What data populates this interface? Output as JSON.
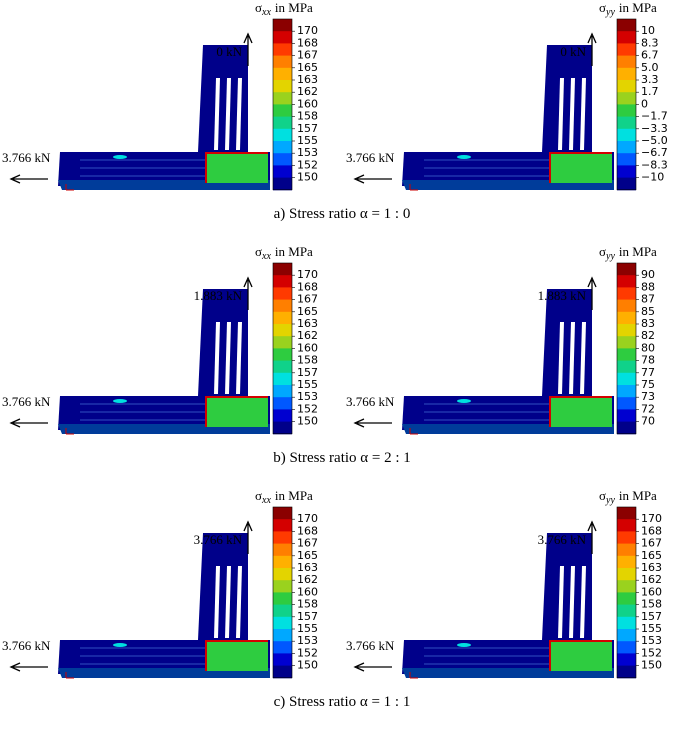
{
  "rows": [
    {
      "caption": "a) Stress ratio α = 1 : 0",
      "panels": [
        {
          "title": {
            "symbol": "σ",
            "sub": "xx",
            "unit": "in MPa"
          },
          "ticks": [
            "170",
            "168",
            "167",
            "165",
            "163",
            "162",
            "160",
            "158",
            "157",
            "155",
            "153",
            "152",
            "150"
          ],
          "force_top": "0 kN",
          "force_left": "3.766 kN"
        },
        {
          "title": {
            "symbol": "σ",
            "sub": "yy",
            "unit": "in MPa"
          },
          "ticks": [
            "10",
            "8.3",
            "6.7",
            "5.0",
            "3.3",
            "1.7",
            "0",
            "−1.7",
            "−3.3",
            "−5.0",
            "−6.7",
            "−8.3",
            "−10"
          ],
          "force_top": "0 kN",
          "force_left": "3.766 kN"
        }
      ]
    },
    {
      "caption": "b) Stress ratio α = 2 : 1",
      "panels": [
        {
          "title": {
            "symbol": "σ",
            "sub": "xx",
            "unit": "in MPa"
          },
          "ticks": [
            "170",
            "168",
            "167",
            "165",
            "163",
            "162",
            "160",
            "158",
            "157",
            "155",
            "153",
            "152",
            "150"
          ],
          "force_top": "1.883 kN",
          "force_left": "3.766 kN"
        },
        {
          "title": {
            "symbol": "σ",
            "sub": "yy",
            "unit": "in MPa"
          },
          "ticks": [
            "90",
            "88",
            "87",
            "85",
            "83",
            "82",
            "80",
            "78",
            "77",
            "75",
            "73",
            "72",
            "70"
          ],
          "force_top": "1.883 kN",
          "force_left": "3.766 kN"
        }
      ]
    },
    {
      "caption": "c) Stress ratio α = 1 : 1",
      "panels": [
        {
          "title": {
            "symbol": "σ",
            "sub": "xx",
            "unit": "in MPa"
          },
          "ticks": [
            "170",
            "168",
            "167",
            "165",
            "163",
            "162",
            "160",
            "158",
            "157",
            "155",
            "153",
            "152",
            "150"
          ],
          "force_top": "3.766 kN",
          "force_left": "3.766 kN"
        },
        {
          "title": {
            "symbol": "σ",
            "sub": "yy",
            "unit": "in MPa"
          },
          "ticks": [
            "170",
            "168",
            "167",
            "165",
            "163",
            "162",
            "160",
            "158",
            "157",
            "155",
            "153",
            "152",
            "150"
          ],
          "force_top": "3.766 kN",
          "force_left": "3.766 kN"
        }
      ]
    }
  ]
}
